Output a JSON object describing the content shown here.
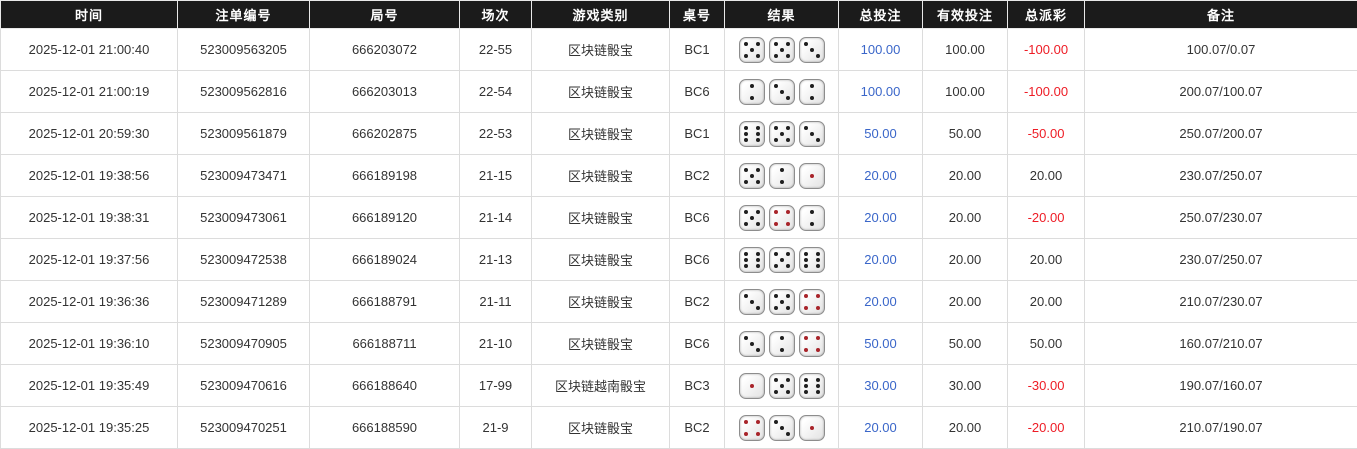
{
  "table": {
    "columns": [
      {
        "key": "time",
        "label": "时间"
      },
      {
        "key": "order-no",
        "label": "注单编号"
      },
      {
        "key": "round-no",
        "label": "局号"
      },
      {
        "key": "session",
        "label": "场次"
      },
      {
        "key": "game-type",
        "label": "游戏类别"
      },
      {
        "key": "table-no",
        "label": "桌号"
      },
      {
        "key": "result",
        "label": "结果"
      },
      {
        "key": "total-bet",
        "label": "总投注"
      },
      {
        "key": "valid-bet",
        "label": "有效投注"
      },
      {
        "key": "total-payout",
        "label": "总派彩"
      },
      {
        "key": "remark",
        "label": "备注"
      }
    ],
    "rows": [
      {
        "time": "2025-12-01 21:00:40",
        "order_no": "523009563205",
        "round_no": "666203072",
        "session": "22-55",
        "game_type": "区块链骰宝",
        "table_no": "BC1",
        "dice": [
          5,
          5,
          3
        ],
        "total_bet": "100.00",
        "valid_bet": "100.00",
        "total_payout": "-100.00",
        "remark": "100.07/0.07"
      },
      {
        "time": "2025-12-01 21:00:19",
        "order_no": "523009562816",
        "round_no": "666203013",
        "session": "22-54",
        "game_type": "区块链骰宝",
        "table_no": "BC6",
        "dice": [
          2,
          3,
          2
        ],
        "total_bet": "100.00",
        "valid_bet": "100.00",
        "total_payout": "-100.00",
        "remark": "200.07/100.07"
      },
      {
        "time": "2025-12-01 20:59:30",
        "order_no": "523009561879",
        "round_no": "666202875",
        "session": "22-53",
        "game_type": "区块链骰宝",
        "table_no": "BC1",
        "dice": [
          6,
          5,
          3
        ],
        "total_bet": "50.00",
        "valid_bet": "50.00",
        "total_payout": "-50.00",
        "remark": "250.07/200.07"
      },
      {
        "time": "2025-12-01 19:38:56",
        "order_no": "523009473471",
        "round_no": "666189198",
        "session": "21-15",
        "game_type": "区块链骰宝",
        "table_no": "BC2",
        "dice": [
          5,
          2,
          1
        ],
        "total_bet": "20.00",
        "valid_bet": "20.00",
        "total_payout": "20.00",
        "remark": "230.07/250.07"
      },
      {
        "time": "2025-12-01 19:38:31",
        "order_no": "523009473061",
        "round_no": "666189120",
        "session": "21-14",
        "game_type": "区块链骰宝",
        "table_no": "BC6",
        "dice": [
          5,
          4,
          2
        ],
        "total_bet": "20.00",
        "valid_bet": "20.00",
        "total_payout": "-20.00",
        "remark": "250.07/230.07"
      },
      {
        "time": "2025-12-01 19:37:56",
        "order_no": "523009472538",
        "round_no": "666189024",
        "session": "21-13",
        "game_type": "区块链骰宝",
        "table_no": "BC6",
        "dice": [
          6,
          5,
          6
        ],
        "total_bet": "20.00",
        "valid_bet": "20.00",
        "total_payout": "20.00",
        "remark": "230.07/250.07"
      },
      {
        "time": "2025-12-01 19:36:36",
        "order_no": "523009471289",
        "round_no": "666188791",
        "session": "21-11",
        "game_type": "区块链骰宝",
        "table_no": "BC2",
        "dice": [
          3,
          5,
          4
        ],
        "total_bet": "20.00",
        "valid_bet": "20.00",
        "total_payout": "20.00",
        "remark": "210.07/230.07"
      },
      {
        "time": "2025-12-01 19:36:10",
        "order_no": "523009470905",
        "round_no": "666188711",
        "session": "21-10",
        "game_type": "区块链骰宝",
        "table_no": "BC6",
        "dice": [
          3,
          2,
          4
        ],
        "total_bet": "50.00",
        "valid_bet": "50.00",
        "total_payout": "50.00",
        "remark": "160.07/210.07"
      },
      {
        "time": "2025-12-01 19:35:49",
        "order_no": "523009470616",
        "round_no": "666188640",
        "session": "17-99",
        "game_type": "区块链越南骰宝",
        "table_no": "BC3",
        "dice": [
          1,
          5,
          6
        ],
        "total_bet": "30.00",
        "valid_bet": "30.00",
        "total_payout": "-30.00",
        "remark": "190.07/160.07"
      },
      {
        "time": "2025-12-01 19:35:25",
        "order_no": "523009470251",
        "round_no": "666188590",
        "session": "21-9",
        "game_type": "区块链骰宝",
        "table_no": "BC2",
        "dice": [
          4,
          3,
          1
        ],
        "total_bet": "20.00",
        "valid_bet": "20.00",
        "total_payout": "-20.00",
        "remark": "210.07/190.07"
      }
    ]
  },
  "colors": {
    "header_bg": "#1b1b1b",
    "header_text": "#ffffff",
    "border": "#dcdcdc",
    "text": "#333333",
    "bet_amount_blue": "#3a66c9",
    "negative_red": "#ee1c25",
    "pip_black": "#1f1f1f",
    "pip_red": "#a8242a"
  }
}
